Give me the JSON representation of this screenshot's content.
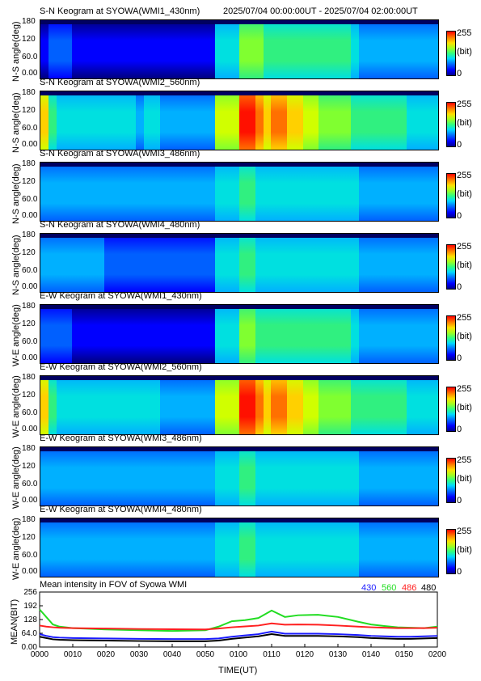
{
  "header": {
    "time_range": "2025/07/04 00:00:00UT - 2025/07/04 02:00:00UT"
  },
  "panels": [
    {
      "title": "S-N Keogram at SYOWA(WMI1_430nm)",
      "ylabel": "N-S angle(deg)",
      "profile": [
        1,
        2,
        2,
        2,
        1,
        1,
        1,
        1,
        1,
        1,
        1,
        1,
        1,
        1,
        1,
        1,
        1,
        1,
        1,
        1,
        1,
        1,
        4,
        4,
        4,
        6,
        6,
        6,
        5,
        5,
        5,
        5,
        5,
        5,
        5,
        5,
        5,
        5,
        5,
        4,
        3,
        3,
        3,
        3,
        3,
        3,
        3,
        3,
        3,
        3
      ]
    },
    {
      "title": "S-N Keogram at SYOWA(WMI2_560nm)",
      "ylabel": "N-S angle(deg)",
      "profile": [
        8,
        5,
        4,
        4,
        4,
        4,
        4,
        4,
        4,
        4,
        4,
        4,
        3,
        4,
        4,
        3,
        3,
        3,
        3,
        3,
        3,
        3,
        7,
        7,
        7,
        10,
        10,
        9,
        8,
        9,
        9,
        8,
        8,
        7,
        7,
        6,
        6,
        6,
        6,
        5,
        5,
        5,
        5,
        5,
        5,
        5,
        4,
        4,
        4,
        4
      ]
    },
    {
      "title": "S-N Keogram at SYOWA(WMI3_486nm)",
      "ylabel": "N-S angle(deg)",
      "profile": [
        3,
        3,
        3,
        3,
        3,
        3,
        3,
        3,
        3,
        3,
        3,
        3,
        3,
        3,
        3,
        3,
        3,
        3,
        3,
        3,
        3,
        3,
        4,
        4,
        4,
        5,
        5,
        4,
        4,
        4,
        4,
        4,
        4,
        4,
        4,
        4,
        4,
        4,
        4,
        4,
        3,
        3,
        3,
        3,
        3,
        3,
        3,
        3,
        3,
        3
      ]
    },
    {
      "title": "S-N Keogram at SYOWA(WMI4_480nm)",
      "ylabel": "N-S angle(deg)",
      "profile": [
        3,
        3,
        3,
        3,
        3,
        3,
        3,
        3,
        2,
        2,
        2,
        2,
        2,
        2,
        2,
        2,
        2,
        2,
        2,
        2,
        2,
        2,
        4,
        4,
        4,
        5,
        5,
        4,
        4,
        4,
        4,
        4,
        4,
        4,
        4,
        4,
        4,
        4,
        4,
        4,
        3,
        3,
        3,
        3,
        3,
        3,
        3,
        3,
        3,
        3
      ]
    },
    {
      "title": "E-W Keogram at SYOWA(WMI1_430nm)",
      "ylabel": "W-E angle(deg)",
      "profile": [
        2,
        2,
        2,
        2,
        1,
        1,
        1,
        1,
        1,
        1,
        1,
        1,
        1,
        1,
        1,
        1,
        1,
        1,
        1,
        1,
        1,
        1,
        4,
        4,
        4,
        6,
        6,
        5,
        5,
        5,
        5,
        5,
        5,
        5,
        5,
        5,
        5,
        5,
        5,
        4,
        3,
        3,
        3,
        3,
        3,
        3,
        3,
        3,
        3,
        3
      ]
    },
    {
      "title": "E-W Keogram at SYOWA(WMI2_560nm)",
      "ylabel": "W-E angle(deg)",
      "profile": [
        8,
        5,
        4,
        4,
        4,
        4,
        4,
        4,
        4,
        4,
        4,
        4,
        4,
        4,
        4,
        3,
        3,
        3,
        3,
        3,
        3,
        3,
        7,
        7,
        7,
        10,
        10,
        9,
        8,
        9,
        9,
        8,
        8,
        7,
        7,
        6,
        6,
        6,
        6,
        5,
        5,
        5,
        5,
        5,
        5,
        5,
        4,
        4,
        4,
        4
      ]
    },
    {
      "title": "E-W Keogram at SYOWA(WMI3_486nm)",
      "ylabel": "W-E angle(deg)",
      "profile": [
        3,
        3,
        3,
        3,
        3,
        3,
        3,
        3,
        3,
        3,
        3,
        3,
        3,
        3,
        3,
        3,
        3,
        3,
        3,
        3,
        3,
        3,
        4,
        4,
        4,
        5,
        5,
        4,
        4,
        4,
        4,
        4,
        4,
        4,
        4,
        4,
        4,
        4,
        4,
        4,
        3,
        3,
        3,
        3,
        3,
        3,
        3,
        3,
        3,
        3
      ]
    },
    {
      "title": "E-W Keogram at SYOWA(WMI4_480nm)",
      "ylabel": "W-E angle(deg)",
      "profile": [
        3,
        3,
        3,
        3,
        3,
        3,
        3,
        3,
        3,
        3,
        3,
        3,
        3,
        3,
        3,
        3,
        3,
        3,
        3,
        3,
        3,
        3,
        4,
        4,
        4,
        5,
        5,
        4,
        4,
        4,
        4,
        4,
        4,
        4,
        4,
        4,
        4,
        4,
        4,
        4,
        3,
        3,
        3,
        3,
        3,
        3,
        3,
        3,
        3,
        3
      ]
    }
  ],
  "keogram_axis": {
    "yticks": [
      "180",
      "120",
      "60.0",
      "0.00"
    ]
  },
  "colorbar": {
    "max_label": "255",
    "unit_label": "(bit)",
    "min_label": "0"
  },
  "colors": {
    "c430": "#1a1aff",
    "c560": "#22dd22",
    "c486": "#ff2020",
    "c480": "#000000",
    "scale": [
      "#000080",
      "#0000ff",
      "#0060ff",
      "#00b0ff",
      "#00e0e0",
      "#30f080",
      "#80ff30",
      "#d0ff00",
      "#ffd000",
      "#ff7000",
      "#ff1000"
    ]
  },
  "mean_panel": {
    "title": "Mean intensity in FOV of Syowa WMI",
    "legend": [
      "430",
      "560",
      "486",
      "480"
    ]
  },
  "chart_data": {
    "type": "line",
    "title": "Mean intensity in FOV of Syowa WMI",
    "xlabel": "TIME(UT)",
    "ylabel": "MEAN(BIT)",
    "xlim": [
      0,
      120
    ],
    "ylim": [
      0,
      256
    ],
    "yticks": [
      0,
      64,
      128,
      192,
      256
    ],
    "ytick_labels": [
      "0.00",
      "64.0",
      "128",
      "192",
      "256"
    ],
    "xtick_labels": [
      "0000",
      "0010",
      "0020",
      "0030",
      "0040",
      "0050",
      "0100",
      "0110",
      "0120",
      "0130",
      "0140",
      "0150",
      "0200"
    ],
    "x": [
      0,
      2,
      4,
      6,
      10,
      20,
      30,
      40,
      50,
      54,
      58,
      62,
      66,
      70,
      74,
      78,
      84,
      90,
      96,
      100,
      104,
      108,
      112,
      116,
      120
    ],
    "series": [
      {
        "name": "430",
        "values": [
          60,
          52,
          46,
          44,
          42,
          40,
          38,
          37,
          37,
          40,
          48,
          54,
          60,
          72,
          62,
          62,
          62,
          60,
          56,
          52,
          50,
          48,
          48,
          50,
          52
        ]
      },
      {
        "name": "560",
        "values": [
          175,
          140,
          105,
          95,
          88,
          82,
          78,
          75,
          78,
          95,
          120,
          125,
          135,
          170,
          140,
          148,
          150,
          140,
          118,
          105,
          98,
          92,
          90,
          88,
          95
        ]
      },
      {
        "name": "486",
        "values": [
          100,
          95,
          92,
          90,
          88,
          86,
          84,
          83,
          82,
          86,
          92,
          96,
          100,
          110,
          104,
          105,
          104,
          100,
          95,
          92,
          90,
          88,
          88,
          88,
          90
        ]
      },
      {
        "name": "480",
        "values": [
          48,
          42,
          36,
          34,
          32,
          30,
          28,
          27,
          27,
          30,
          38,
          44,
          50,
          60,
          52,
          52,
          52,
          50,
          46,
          42,
          40,
          38,
          38,
          40,
          42
        ]
      }
    ]
  }
}
